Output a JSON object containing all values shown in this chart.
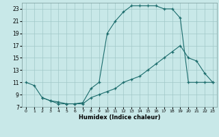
{
  "xlabel": "Humidex (Indice chaleur)",
  "bg_color": "#c8e8e8",
  "grid_color": "#a0c8c8",
  "line_color": "#1a6b6b",
  "xlim": [
    -0.5,
    23.5
  ],
  "ylim": [
    7,
    24
  ],
  "xtick_labels": [
    "0",
    "1",
    "2",
    "3",
    "4",
    "5",
    "6",
    "7",
    "8",
    "9",
    "10",
    "11",
    "12",
    "13",
    "14",
    "15",
    "16",
    "17",
    "18",
    "19",
    "20",
    "21",
    "22",
    "23"
  ],
  "xticks": [
    0,
    1,
    2,
    3,
    4,
    5,
    6,
    7,
    8,
    9,
    10,
    11,
    12,
    13,
    14,
    15,
    16,
    17,
    18,
    19,
    20,
    21,
    22,
    23
  ],
  "yticks": [
    7,
    9,
    11,
    13,
    15,
    17,
    19,
    21,
    23
  ],
  "curve1_x": [
    0,
    1,
    2,
    3,
    4,
    5,
    6,
    7,
    8,
    9,
    10,
    11,
    12,
    13,
    14,
    15,
    16,
    17,
    18,
    19,
    20,
    21,
    22,
    23
  ],
  "curve1_y": [
    11,
    10.5,
    8.5,
    8.0,
    7.8,
    7.5,
    7.5,
    7.7,
    10.0,
    11.0,
    19.0,
    21.0,
    22.5,
    23.5,
    23.5,
    23.5,
    23.5,
    23.0,
    23.0,
    21.5,
    11.0,
    11.0,
    11.0,
    11.0
  ],
  "curve2_x": [
    2,
    3,
    4,
    5,
    6,
    7,
    8,
    9,
    10,
    11,
    12,
    13,
    14,
    15,
    16,
    17,
    18,
    19,
    20,
    21,
    22,
    23
  ],
  "curve2_y": [
    8.5,
    8.0,
    7.5,
    7.5,
    7.5,
    7.5,
    8.5,
    9.0,
    9.5,
    10.0,
    11.0,
    11.5,
    12.0,
    13.0,
    14.0,
    15.0,
    16.0,
    17.0,
    15.0,
    14.5,
    12.5,
    11.0
  ]
}
